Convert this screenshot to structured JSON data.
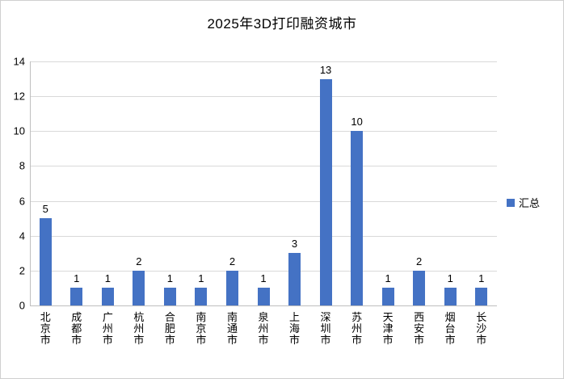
{
  "chart": {
    "title": "2025年3D打印融资城市",
    "legend_label": "汇总"
  },
  "chart_data": {
    "type": "bar",
    "title": "2025年3D打印融资城市",
    "categories": [
      "北京市",
      "成都市",
      "广州市",
      "杭州市",
      "合肥市",
      "南京市",
      "南通市",
      "泉州市",
      "上海市",
      "深圳市",
      "苏州市",
      "天津市",
      "西安市",
      "烟台市",
      "长沙市"
    ],
    "series": [
      {
        "name": "汇总",
        "values": [
          5,
          1,
          1,
          2,
          1,
          1,
          2,
          1,
          3,
          13,
          10,
          1,
          2,
          1,
          1
        ]
      }
    ],
    "xlabel": "",
    "ylabel": "",
    "ylim": [
      0,
      14
    ],
    "yticks": [
      0,
      2,
      4,
      6,
      8,
      10,
      12,
      14
    ],
    "bar_color": "#4472C4",
    "grid": true,
    "legend_position": "right",
    "data_labels": true
  }
}
